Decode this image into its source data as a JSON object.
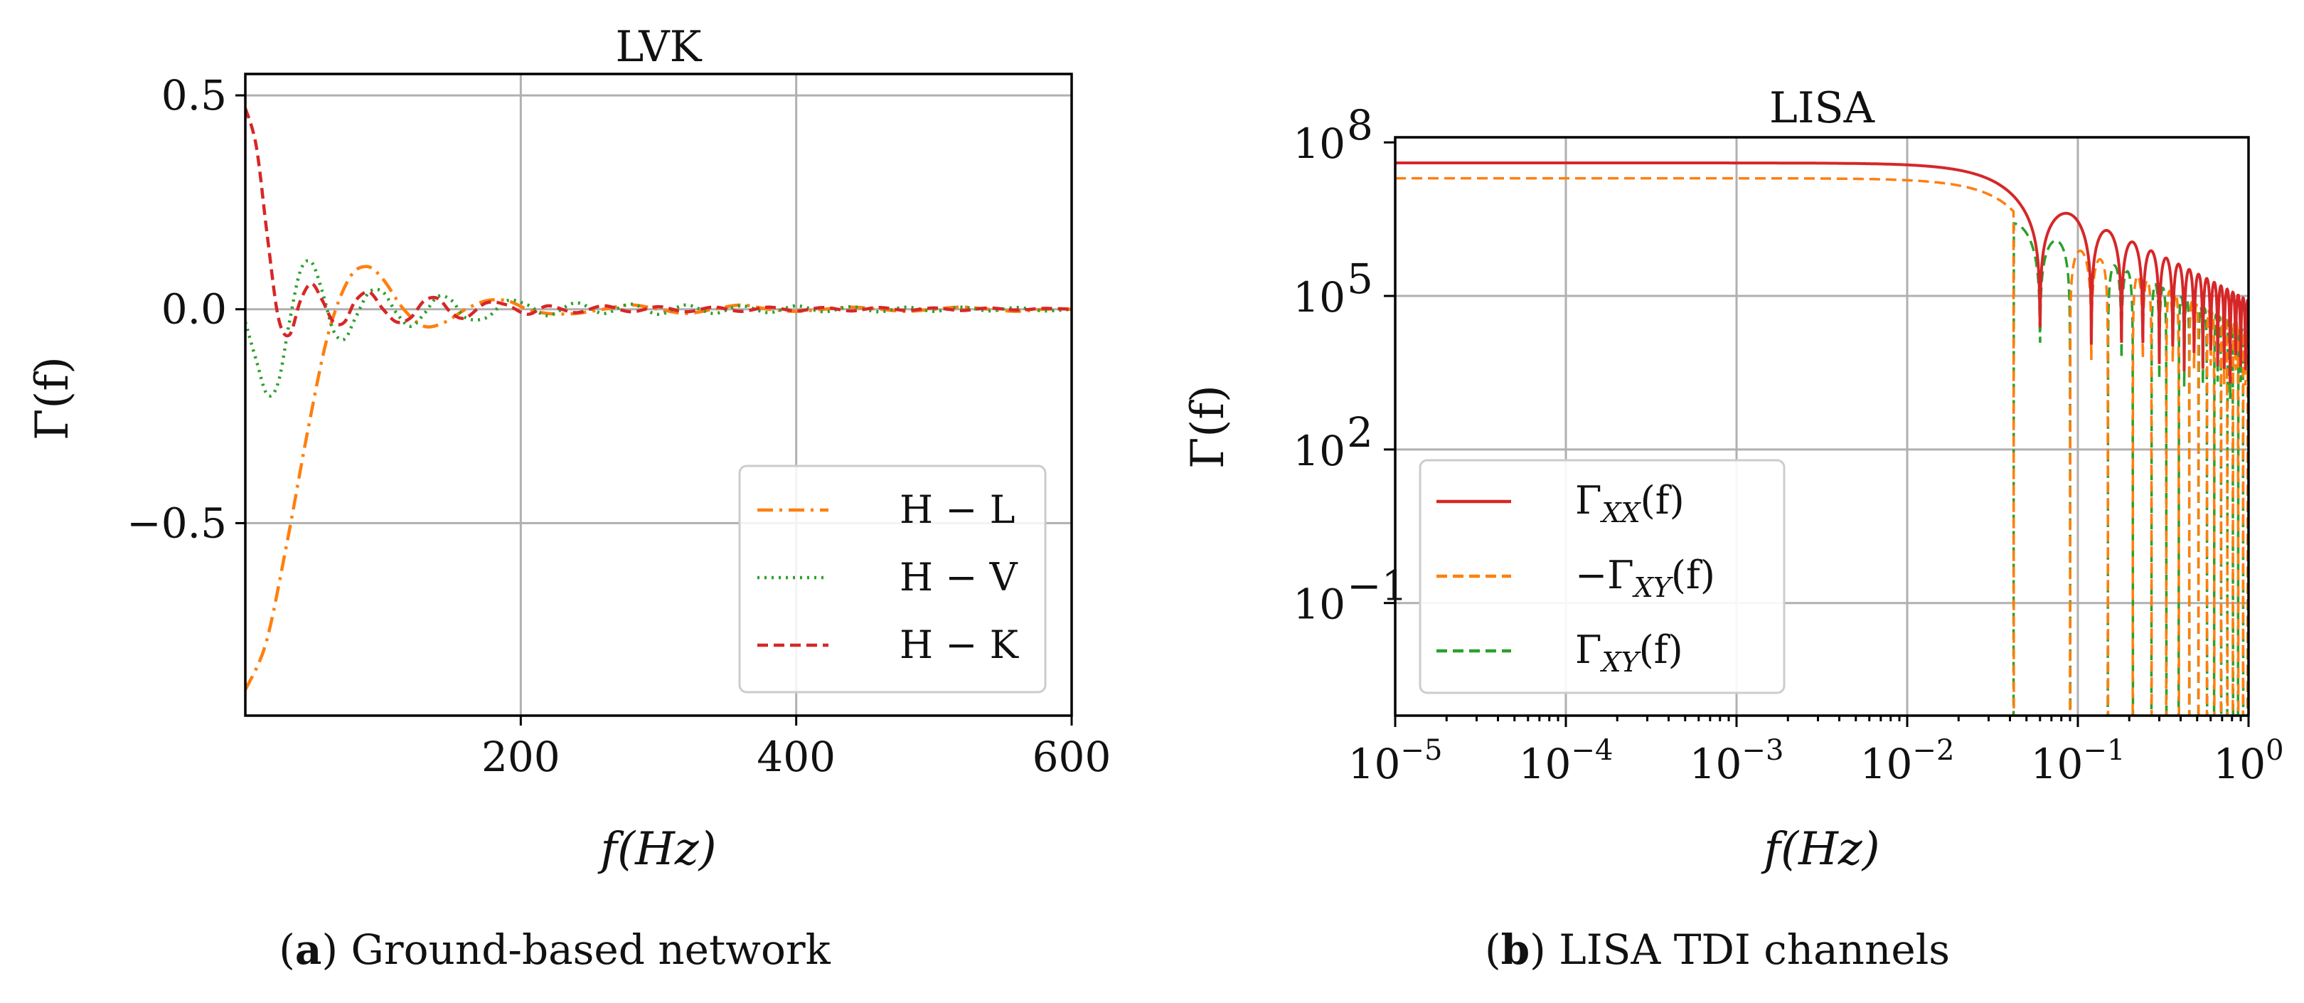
{
  "chart_data": [
    {
      "type": "line",
      "panel_label": "a",
      "caption": "Ground-based network",
      "title": "LVK",
      "xlabel": "f(Hz)",
      "ylabel": "Γ(f)",
      "xlim": [
        0,
        600
      ],
      "ylim": [
        -0.95,
        0.55
      ],
      "xticks": [
        200,
        400,
        600
      ],
      "yticks": [
        0.5,
        0.0,
        -0.5
      ],
      "xtick_labels": [
        "200",
        "400",
        "600"
      ],
      "ytick_labels": [
        "0.5",
        "0.0",
        "−0.5"
      ],
      "grid": true,
      "legend_position": "lower-right",
      "series": [
        {
          "name": "H − L",
          "style": "dashdot",
          "color": "#ff7f0e",
          "x": [
            0,
            15,
            30,
            45,
            60,
            75,
            88,
            100,
            115,
            130,
            145,
            160,
            175,
            190,
            205,
            220,
            240,
            260,
            280,
            300,
            320,
            340,
            360,
            380,
            400,
            420,
            440,
            460,
            480,
            500,
            520,
            540,
            560,
            580,
            600
          ],
          "values": [
            -0.89,
            -0.78,
            -0.55,
            -0.29,
            -0.06,
            0.07,
            0.1,
            0.07,
            0.0,
            -0.04,
            -0.03,
            0.0,
            0.02,
            0.02,
            0.0,
            -0.01,
            -0.01,
            0.0,
            0.01,
            0.0,
            -0.01,
            0.0,
            0.01,
            0.0,
            -0.005,
            0.0,
            0.005,
            0.0,
            -0.005,
            0.0,
            0.005,
            0.0,
            -0.005,
            0.0,
            0.0
          ]
        },
        {
          "name": "H − V",
          "style": "dotted",
          "color": "#2ca02c",
          "x": [
            0,
            8,
            16,
            24,
            32,
            40,
            48,
            56,
            64,
            72,
            80,
            90,
            100,
            110,
            120,
            130,
            140,
            150,
            160,
            175,
            190,
            205,
            220,
            240,
            260,
            280,
            300,
            320,
            340,
            360,
            380,
            400,
            420,
            440,
            460,
            480,
            500,
            520,
            540,
            560,
            580,
            600
          ],
          "values": [
            -0.03,
            -0.12,
            -0.2,
            -0.17,
            -0.03,
            0.09,
            0.11,
            0.04,
            -0.05,
            -0.07,
            -0.02,
            0.04,
            0.04,
            -0.01,
            -0.04,
            -0.01,
            0.03,
            0.02,
            -0.02,
            -0.02,
            0.02,
            0.01,
            -0.015,
            0.015,
            -0.01,
            0.012,
            -0.012,
            0.01,
            -0.01,
            0.008,
            -0.008,
            0.008,
            -0.006,
            0.006,
            -0.006,
            0.005,
            -0.005,
            0.005,
            -0.004,
            0.004,
            -0.004,
            0.0
          ]
        },
        {
          "name": "H − K",
          "style": "dashed",
          "color": "#d62728",
          "x": [
            0,
            8,
            16,
            24,
            32,
            40,
            48,
            56,
            64,
            72,
            80,
            90,
            100,
            110,
            120,
            130,
            140,
            150,
            160,
            175,
            190,
            205,
            220,
            240,
            260,
            280,
            300,
            320,
            340,
            360,
            380,
            400,
            420,
            440,
            460,
            480,
            500,
            520,
            540,
            560,
            580,
            600
          ],
          "values": [
            0.47,
            0.38,
            0.17,
            -0.02,
            -0.06,
            0.02,
            0.06,
            0.02,
            -0.03,
            -0.03,
            0.02,
            0.04,
            0.0,
            -0.03,
            -0.02,
            0.02,
            0.025,
            -0.01,
            -0.02,
            0.015,
            0.01,
            -0.012,
            0.008,
            -0.008,
            0.008,
            -0.006,
            0.006,
            -0.006,
            0.005,
            -0.005,
            0.005,
            -0.004,
            0.004,
            -0.004,
            0.004,
            -0.003,
            0.003,
            -0.003,
            0.003,
            -0.002,
            0.002,
            0.0
          ]
        }
      ]
    },
    {
      "type": "line",
      "panel_label": "b",
      "caption": "LISA TDI channels",
      "title": "LISA",
      "xlabel": "f(Hz)",
      "ylabel": "Γ(f)",
      "xscale": "log",
      "yscale": "log",
      "xlim_log10": [
        -5,
        0
      ],
      "ylim_log10": [
        -3.2,
        8.1
      ],
      "xticks_log10": [
        -5,
        -4,
        -3,
        -2,
        -1,
        0
      ],
      "xtick_bases": [
        "10",
        "10",
        "10",
        "10",
        "10",
        "10"
      ],
      "xtick_exponents": [
        "−5",
        "−4",
        "−3",
        "−2",
        "−1",
        "0"
      ],
      "yticks_log10": [
        8,
        5,
        2,
        -1
      ],
      "ytick_bases": [
        "10",
        "10",
        "10",
        "10"
      ],
      "ytick_exponents": [
        "8",
        "5",
        "2",
        "−1"
      ],
      "grid": true,
      "legend_position": "lower-left",
      "series": [
        {
          "name": "Γ_XX(f)",
          "label_main": "Γ",
          "label_sub": "XX",
          "label_tail": "(f)",
          "style": "solid",
          "color": "#d62728",
          "plateau_log10": 7.6,
          "knee_hz": 0.025,
          "envelope": "sinc",
          "lobes": "positive"
        },
        {
          "name": "−Γ_XY(f)",
          "label_main": "−Γ",
          "label_sub": "XY",
          "label_tail": "(f)",
          "style": "dashed",
          "color": "#ff7f0e",
          "plateau_log10": 7.3,
          "knee_hz": 0.025,
          "envelope": "sinc",
          "lobes": "positive-part of −Γ_XY"
        },
        {
          "name": "Γ_XY(f)",
          "label_main": "Γ",
          "label_sub": "XY",
          "label_tail": "(f)",
          "style": "dashed",
          "color": "#2ca02c",
          "plateau_log10": 7.3,
          "knee_hz": 0.025,
          "envelope": "sinc",
          "lobes": "positive-part of Γ_XY"
        }
      ]
    }
  ]
}
